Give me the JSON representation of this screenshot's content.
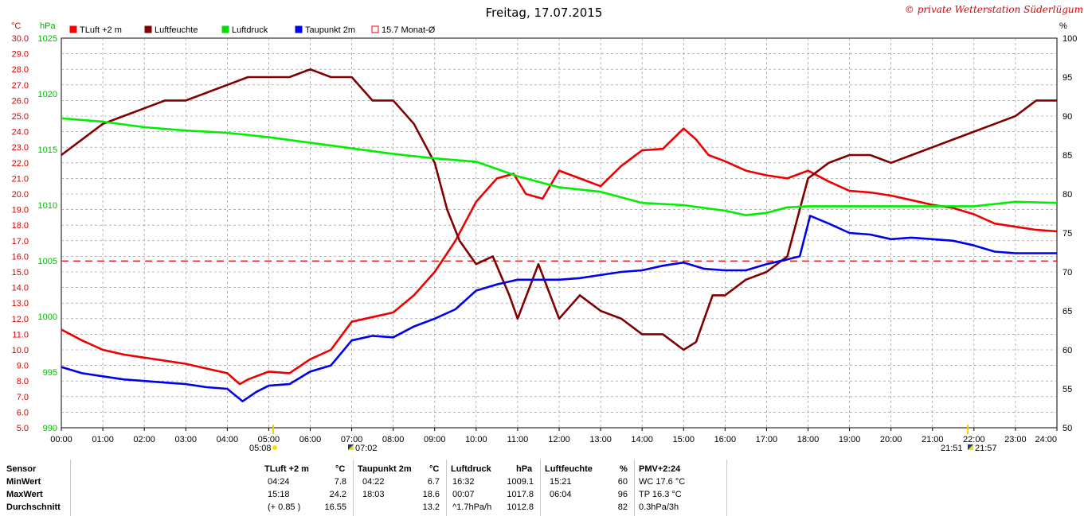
{
  "header": {
    "title": "Freitag, 17.07.2015",
    "copyright": "© private Wetterstation Süderlügum"
  },
  "legend": [
    {
      "label": "TLuft +2 m",
      "color": "#ff0000",
      "filled": true
    },
    {
      "label": "Luftfeuchte",
      "color": "#800000",
      "filled": true
    },
    {
      "label": "Luftdruck",
      "color": "#00dd00",
      "filled": true
    },
    {
      "label": "Taupunkt 2m",
      "color": "#0000ff",
      "filled": true
    },
    {
      "label": "15.7 Monat-Ø",
      "color": "#dd0000",
      "filled": false
    }
  ],
  "axis_units": {
    "temp": "°C",
    "pressure": "hPa",
    "humidity": "%"
  },
  "markers": {
    "sunrise": "05:08",
    "sunset": "21:51",
    "moonrise_icon": "07:02",
    "moonset_icon": "21:57"
  },
  "chart_data": {
    "type": "line",
    "x_unit": "hour",
    "xlim": [
      0,
      24
    ],
    "x_tick_labels": [
      "00:00",
      "01:00",
      "02:00",
      "03:00",
      "04:00",
      "05:00",
      "06:00",
      "07:00",
      "08:00",
      "09:00",
      "10:00",
      "11:00",
      "12:00",
      "13:00",
      "14:00",
      "15:00",
      "16:00",
      "17:00",
      "18:00",
      "19:00",
      "20:00",
      "21:00",
      "22:00",
      "23:00",
      "24:00"
    ],
    "axes": {
      "temp": {
        "unit": "°C",
        "range": [
          5.0,
          30.0
        ],
        "ticks": [
          "5.0",
          "6.0",
          "7.0",
          "8.0",
          "9.0",
          "10.0",
          "11.0",
          "12.0",
          "13.0",
          "14.0",
          "15.0",
          "16.0",
          "17.0",
          "18.0",
          "19.0",
          "20.0",
          "21.0",
          "22.0",
          "23.0",
          "24.0",
          "25.0",
          "26.0",
          "27.0",
          "28.0",
          "29.0",
          "30.0"
        ]
      },
      "pressure": {
        "unit": "hPa",
        "range": [
          990,
          1025
        ],
        "ticks": [
          "990",
          "995",
          "1000",
          "1005",
          "1010",
          "1015",
          "1020",
          "1025"
        ]
      },
      "humidity": {
        "unit": "%",
        "range": [
          50,
          100
        ],
        "ticks": [
          "50",
          "55",
          "60",
          "65",
          "70",
          "75",
          "80",
          "85",
          "90",
          "95",
          "100"
        ]
      }
    },
    "grid": true,
    "reference_line": {
      "name": "15.7 Monat-Ø",
      "axis": "temp",
      "value": 15.7
    },
    "series": [
      {
        "name": "TLuft +2 m",
        "axis": "temp",
        "color": "#ee0000",
        "x": [
          0,
          0.5,
          1,
          1.5,
          2,
          2.5,
          3,
          3.5,
          4,
          4.3,
          4.5,
          5,
          5.5,
          6,
          6.5,
          7,
          7.5,
          8,
          8.5,
          9,
          9.5,
          10,
          10.5,
          10.9,
          11.2,
          11.6,
          12,
          12.5,
          13,
          13.5,
          14,
          14.5,
          15,
          15.3,
          15.6,
          16,
          16.5,
          17,
          17.5,
          18,
          18.5,
          19,
          19.5,
          20,
          20.5,
          21,
          21.5,
          22,
          22.5,
          23,
          23.5,
          24
        ],
        "values": [
          11.3,
          10.6,
          10.0,
          9.7,
          9.5,
          9.3,
          9.1,
          8.8,
          8.5,
          7.8,
          8.1,
          8.6,
          8.5,
          9.4,
          10.0,
          11.8,
          12.1,
          12.4,
          13.5,
          15.0,
          17.0,
          19.5,
          21.0,
          21.3,
          20.0,
          19.7,
          21.5,
          21.0,
          20.5,
          21.8,
          22.8,
          22.9,
          24.2,
          23.5,
          22.5,
          22.1,
          21.5,
          21.2,
          21.0,
          21.5,
          20.8,
          20.2,
          20.1,
          19.9,
          19.6,
          19.3,
          19.1,
          18.7,
          18.1,
          17.9,
          17.7,
          17.6
        ]
      },
      {
        "name": "Luftfeuchte",
        "axis": "humidity",
        "color": "#800000",
        "x": [
          0,
          0.5,
          1,
          1.5,
          2,
          2.5,
          3,
          3.5,
          4,
          4.5,
          5,
          5.5,
          6,
          6.5,
          7,
          7.5,
          8,
          8.5,
          9,
          9.3,
          9.6,
          10,
          10.4,
          10.8,
          11,
          11.5,
          12,
          12.5,
          13,
          13.5,
          14,
          14.5,
          15,
          15.3,
          15.7,
          16,
          16.5,
          17,
          17.5,
          18,
          18.5,
          19,
          19.5,
          20,
          20.5,
          21,
          21.5,
          22,
          22.5,
          23,
          23.5,
          24
        ],
        "values": [
          85,
          87,
          89,
          90,
          91,
          92,
          92,
          93,
          94,
          95,
          95,
          95,
          96,
          95,
          95,
          92,
          92,
          89,
          84,
          78,
          74,
          71,
          72,
          67,
          64,
          71,
          64,
          67,
          65,
          64,
          62,
          62,
          60,
          61,
          67,
          67,
          69,
          70,
          72,
          82,
          84,
          85,
          85,
          84,
          85,
          86,
          87,
          88,
          89,
          90,
          92,
          92
        ]
      },
      {
        "name": "Luftdruck",
        "axis": "pressure",
        "color": "#00ee00",
        "x": [
          0,
          1,
          2,
          3,
          4,
          5,
          6,
          7,
          8,
          9,
          10,
          11,
          12,
          13,
          14,
          15,
          16,
          16.5,
          17,
          17.5,
          18,
          19,
          20,
          21,
          22,
          23,
          24
        ],
        "values": [
          1017.8,
          1017.5,
          1017.0,
          1016.7,
          1016.5,
          1016.1,
          1015.6,
          1015.1,
          1014.6,
          1014.2,
          1013.9,
          1012.6,
          1011.6,
          1011.2,
          1010.2,
          1010.0,
          1009.5,
          1009.1,
          1009.3,
          1009.8,
          1009.9,
          1009.9,
          1009.9,
          1009.9,
          1009.9,
          1010.3,
          1010.2
        ]
      },
      {
        "name": "Taupunkt 2m",
        "axis": "temp",
        "color": "#0000ee",
        "x": [
          0,
          0.5,
          1,
          1.5,
          2,
          2.5,
          3,
          3.5,
          4,
          4.37,
          4.7,
          5,
          5.5,
          6,
          6.5,
          7,
          7.5,
          8,
          8.5,
          9,
          9.5,
          10,
          10.5,
          11,
          11.5,
          12,
          12.5,
          13,
          13.5,
          14,
          14.5,
          15,
          15.5,
          16,
          16.5,
          17,
          17.5,
          17.8,
          18.05,
          18.5,
          19,
          19.5,
          20,
          20.5,
          21,
          21.5,
          22,
          22.5,
          23,
          23.5,
          24
        ],
        "values": [
          8.9,
          8.5,
          8.3,
          8.1,
          8.0,
          7.9,
          7.8,
          7.6,
          7.5,
          6.7,
          7.3,
          7.7,
          7.8,
          8.6,
          9.0,
          10.6,
          10.9,
          10.8,
          11.5,
          12.0,
          12.6,
          13.8,
          14.2,
          14.5,
          14.5,
          14.5,
          14.6,
          14.8,
          15.0,
          15.1,
          15.4,
          15.6,
          15.2,
          15.1,
          15.1,
          15.5,
          15.8,
          16.0,
          18.6,
          18.1,
          17.5,
          17.4,
          17.1,
          17.2,
          17.1,
          17.0,
          16.7,
          16.3,
          16.2,
          16.2,
          16.2
        ]
      }
    ]
  },
  "stats": {
    "header": {
      "sensor": "Sensor",
      "tluft": "TLuft +2 m",
      "tluft_unit": "°C",
      "taupunkt": "Taupunkt 2m",
      "taupunkt_unit": "°C",
      "luftdruck": "Luftdruck",
      "luftdruck_unit": "hPa",
      "luftfeuchte": "Luftfeuchte",
      "luftfeuchte_unit": "%",
      "pmv": "PMV+2:24"
    },
    "rows": [
      {
        "label": "MinWert",
        "t_time": "04:24",
        "t_val": "7.8",
        "tp_time": "04:22",
        "tp_val": "6.7",
        "p_time": "16:32",
        "p_val": "1009.1",
        "h_time": "15:21",
        "h_val": "60",
        "extra": "WC 17.6 °C"
      },
      {
        "label": "MaxWert",
        "t_time": "15:18",
        "t_val": "24.2",
        "tp_time": "18:03",
        "tp_val": "18.6",
        "p_time": "00:07",
        "p_val": "1017.8",
        "h_time": "06:04",
        "h_val": "96",
        "extra": "TP 16.3 °C"
      },
      {
        "label": "Durchschnitt",
        "t_time": "(+ 0.85 )",
        "t_val": "16.55",
        "tp_time": "",
        "tp_val": "13.2",
        "p_time": "^1.7hPa/h",
        "p_val": "1012.8",
        "h_time": "",
        "h_val": "82",
        "extra": "0.3hPa/3h"
      }
    ]
  }
}
